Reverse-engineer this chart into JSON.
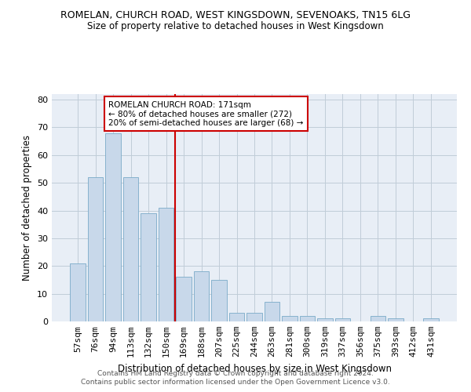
{
  "title1": "ROMELAN, CHURCH ROAD, WEST KINGSDOWN, SEVENOAKS, TN15 6LG",
  "title2": "Size of property relative to detached houses in West Kingsdown",
  "xlabel": "Distribution of detached houses by size in West Kingsdown",
  "ylabel": "Number of detached properties",
  "categories": [
    "57sqm",
    "76sqm",
    "94sqm",
    "113sqm",
    "132sqm",
    "150sqm",
    "169sqm",
    "188sqm",
    "207sqm",
    "225sqm",
    "244sqm",
    "263sqm",
    "281sqm",
    "300sqm",
    "319sqm",
    "337sqm",
    "356sqm",
    "375sqm",
    "393sqm",
    "412sqm",
    "431sqm"
  ],
  "values": [
    21,
    52,
    68,
    52,
    39,
    41,
    16,
    18,
    15,
    3,
    3,
    7,
    2,
    2,
    1,
    1,
    0,
    2,
    1,
    0,
    1
  ],
  "bar_color": "#c8d8ea",
  "bar_edge_color": "#7aaac8",
  "bar_linewidth": 0.6,
  "grid_color": "#c0ccd8",
  "bg_color": "#e8eef6",
  "vline_color": "#cc0000",
  "annotation_text": "ROMELAN CHURCH ROAD: 171sqm\n← 80% of detached houses are smaller (272)\n20% of semi-detached houses are larger (68) →",
  "annotation_box_color": "#ffffff",
  "annotation_box_edge_color": "#cc0000",
  "ylim": [
    0,
    82
  ],
  "yticks": [
    0,
    10,
    20,
    30,
    40,
    50,
    60,
    70,
    80
  ],
  "footer1": "Contains HM Land Registry data © Crown copyright and database right 2024.",
  "footer2": "Contains public sector information licensed under the Open Government Licence v3.0."
}
